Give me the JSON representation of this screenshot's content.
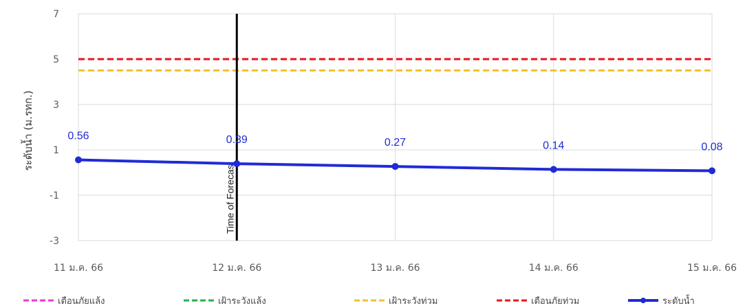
{
  "chart_data": {
    "type": "line",
    "title": "",
    "xlabel": "",
    "ylabel": "ระดับน้ำ (ม.รทก.)",
    "categories": [
      "11 ม.ค. 66",
      "12 ม.ค. 66",
      "13 ม.ค. 66",
      "14 ม.ค. 66",
      "15 ม.ค. 66"
    ],
    "ylim": [
      -3,
      7
    ],
    "yticks": [
      -3,
      -1,
      1,
      3,
      5,
      7
    ],
    "grid": true,
    "series": [
      {
        "name": "ระดับน้ำ",
        "values": [
          0.56,
          0.39,
          0.27,
          0.14,
          0.08
        ],
        "labels": [
          "0.56",
          "0.39",
          "0.27",
          "0.14",
          "0.08"
        ],
        "color": "#1f2bd6",
        "style": "solid-marker"
      }
    ],
    "thresholds": [
      {
        "name": "เตือนภัยแล้ง",
        "value": null,
        "color": "#e83ad8",
        "style": "dashed"
      },
      {
        "name": "เฝ้าระวังแล้ง",
        "value": null,
        "color": "#22b14c",
        "style": "dashed"
      },
      {
        "name": "เฝ้าระวังท่วม",
        "value": 4.5,
        "color": "#f2c12e",
        "style": "dashed"
      },
      {
        "name": "เตือนภัยท่วม",
        "value": 5.0,
        "color": "#e8141c",
        "style": "dashed"
      }
    ],
    "annotation": {
      "text": "Time of Forecast",
      "category_index": 1,
      "color": "#000000"
    },
    "legend_position": "bottom"
  }
}
